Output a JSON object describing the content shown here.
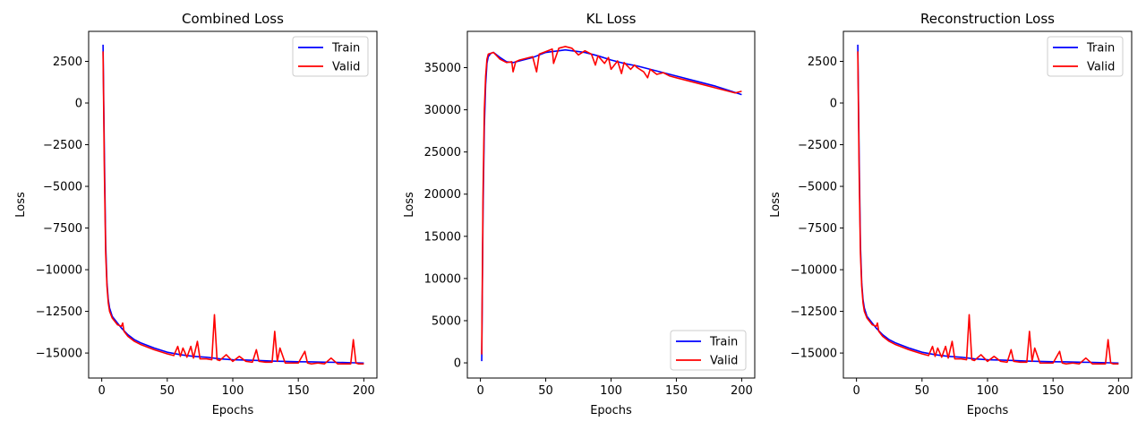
{
  "chart_data": [
    {
      "type": "line",
      "title": "Combined Loss",
      "xlabel": "Epochs",
      "ylabel": "Loss",
      "xlim": [
        -10,
        210
      ],
      "ylim": [
        -16500,
        4300
      ],
      "xticks": [
        0,
        50,
        100,
        150,
        200
      ],
      "xtick_labels": [
        "0",
        "50",
        "100",
        "150",
        "200"
      ],
      "yticks": [
        2500,
        0,
        -2500,
        -5000,
        -7500,
        -10000,
        -12500,
        -15000
      ],
      "ytick_labels": [
        "2500",
        "0",
        "−2500",
        "−5000",
        "−7500",
        "−10000",
        "−12500",
        "−15000"
      ],
      "legend_loc": "upper-right",
      "series": [
        {
          "name": "Train",
          "color": "#0000ff",
          "x": [
            1,
            2,
            3,
            4,
            5,
            6,
            8,
            10,
            12,
            15,
            20,
            25,
            30,
            40,
            50,
            60,
            70,
            80,
            90,
            100,
            110,
            120,
            130,
            140,
            150,
            160,
            170,
            180,
            190,
            200
          ],
          "y": [
            3500,
            -3000,
            -8500,
            -10800,
            -11800,
            -12300,
            -12800,
            -13000,
            -13200,
            -13500,
            -13900,
            -14200,
            -14400,
            -14700,
            -14950,
            -15100,
            -15200,
            -15250,
            -15350,
            -15400,
            -15420,
            -15450,
            -15480,
            -15500,
            -15520,
            -15530,
            -15550,
            -15560,
            -15580,
            -15600
          ]
        },
        {
          "name": "Valid",
          "color": "#ff0000",
          "x": [
            1,
            2,
            3,
            4,
            5,
            6,
            8,
            10,
            12,
            15,
            16,
            17,
            20,
            25,
            30,
            40,
            50,
            55,
            58,
            60,
            62,
            65,
            68,
            70,
            73,
            75,
            80,
            84,
            86,
            88,
            90,
            95,
            100,
            105,
            110,
            115,
            118,
            120,
            125,
            130,
            132,
            134,
            136,
            140,
            145,
            150,
            155,
            157,
            160,
            165,
            170,
            175,
            180,
            185,
            190,
            192,
            194,
            196,
            200
          ],
          "y": [
            3100,
            -4000,
            -9000,
            -11000,
            -12000,
            -12500,
            -12900,
            -13100,
            -13300,
            -13400,
            -13200,
            -13700,
            -14000,
            -14300,
            -14500,
            -14800,
            -15050,
            -15150,
            -14600,
            -15200,
            -14700,
            -15250,
            -14600,
            -15300,
            -14300,
            -15350,
            -15350,
            -15400,
            -12700,
            -15400,
            -15450,
            -15100,
            -15500,
            -15200,
            -15500,
            -15550,
            -14800,
            -15500,
            -15550,
            -15550,
            -13700,
            -15500,
            -14700,
            -15600,
            -15600,
            -15600,
            -14900,
            -15600,
            -15650,
            -15600,
            -15650,
            -15300,
            -15650,
            -15650,
            -15650,
            -14200,
            -15600,
            -15650,
            -15650
          ]
        }
      ]
    },
    {
      "type": "line",
      "title": "KL Loss",
      "xlabel": "Epochs",
      "ylabel": "Loss",
      "xlim": [
        -10,
        210
      ],
      "ylim": [
        -1800,
        39300
      ],
      "xticks": [
        0,
        50,
        100,
        150,
        200
      ],
      "xtick_labels": [
        "0",
        "50",
        "100",
        "150",
        "200"
      ],
      "yticks": [
        0,
        5000,
        10000,
        15000,
        20000,
        25000,
        30000,
        35000
      ],
      "ytick_labels": [
        "0",
        "5000",
        "10000",
        "15000",
        "20000",
        "25000",
        "30000",
        "35000"
      ],
      "legend_loc": "lower-right",
      "series": [
        {
          "name": "Train",
          "color": "#0000ff",
          "x": [
            1,
            2,
            3,
            4,
            5,
            6,
            8,
            10,
            15,
            20,
            25,
            30,
            40,
            50,
            55,
            60,
            65,
            70,
            75,
            80,
            90,
            100,
            110,
            120,
            130,
            140,
            150,
            160,
            170,
            180,
            190,
            200
          ],
          "y": [
            200,
            18000,
            28000,
            33000,
            35500,
            36300,
            36700,
            36800,
            36200,
            35700,
            35600,
            35800,
            36200,
            36800,
            36900,
            37000,
            37100,
            37000,
            36900,
            36800,
            36400,
            35900,
            35500,
            35200,
            34800,
            34400,
            34000,
            33600,
            33200,
            32800,
            32300,
            31800
          ]
        },
        {
          "name": "Valid",
          "color": "#ff0000",
          "x": [
            1,
            2,
            3,
            4,
            5,
            6,
            8,
            10,
            15,
            20,
            24,
            25,
            27,
            30,
            35,
            40,
            43,
            45,
            50,
            55,
            56,
            60,
            65,
            70,
            75,
            80,
            85,
            88,
            90,
            95,
            98,
            100,
            105,
            108,
            110,
            115,
            118,
            120,
            125,
            128,
            130,
            135,
            140,
            145,
            150,
            155,
            160,
            165,
            170,
            175,
            180,
            185,
            190,
            195,
            200
          ],
          "y": [
            1000,
            20000,
            30000,
            34000,
            36000,
            36600,
            36700,
            36800,
            36000,
            35600,
            35700,
            34500,
            35700,
            35900,
            36100,
            36300,
            34500,
            36600,
            36900,
            37200,
            35500,
            37300,
            37500,
            37300,
            36500,
            37000,
            36600,
            35300,
            36400,
            35500,
            36200,
            34800,
            35800,
            34300,
            35600,
            34800,
            35300,
            35000,
            34500,
            33800,
            34800,
            34200,
            34400,
            34000,
            33800,
            33600,
            33400,
            33200,
            33000,
            32800,
            32600,
            32400,
            32200,
            32000,
            32200
          ]
        }
      ]
    },
    {
      "type": "line",
      "title": "Reconstruction Loss",
      "xlabel": "Epochs",
      "ylabel": "Loss",
      "xlim": [
        -10,
        210
      ],
      "ylim": [
        -16500,
        4300
      ],
      "xticks": [
        0,
        50,
        100,
        150,
        200
      ],
      "xtick_labels": [
        "0",
        "50",
        "100",
        "150",
        "200"
      ],
      "yticks": [
        2500,
        0,
        -2500,
        -5000,
        -7500,
        -10000,
        -12500,
        -15000
      ],
      "ytick_labels": [
        "2500",
        "0",
        "−2500",
        "−5000",
        "−7500",
        "−10000",
        "−12500",
        "−15000"
      ],
      "legend_loc": "upper-right",
      "series": [
        {
          "name": "Train",
          "color": "#0000ff",
          "x": [
            1,
            2,
            3,
            4,
            5,
            6,
            8,
            10,
            12,
            15,
            20,
            25,
            30,
            40,
            50,
            60,
            70,
            80,
            90,
            100,
            110,
            120,
            130,
            140,
            150,
            160,
            170,
            180,
            190,
            200
          ],
          "y": [
            3500,
            -3000,
            -8500,
            -10800,
            -11800,
            -12300,
            -12800,
            -13000,
            -13200,
            -13500,
            -13900,
            -14200,
            -14400,
            -14700,
            -14950,
            -15100,
            -15200,
            -15250,
            -15350,
            -15400,
            -15420,
            -15450,
            -15480,
            -15500,
            -15520,
            -15530,
            -15550,
            -15560,
            -15580,
            -15600
          ]
        },
        {
          "name": "Valid",
          "color": "#ff0000",
          "x": [
            1,
            2,
            3,
            4,
            5,
            6,
            8,
            10,
            12,
            15,
            16,
            17,
            20,
            25,
            30,
            40,
            50,
            55,
            58,
            60,
            62,
            65,
            68,
            70,
            73,
            75,
            80,
            84,
            86,
            88,
            90,
            95,
            100,
            105,
            110,
            115,
            118,
            120,
            125,
            130,
            132,
            134,
            136,
            140,
            145,
            150,
            155,
            157,
            160,
            165,
            170,
            175,
            180,
            185,
            190,
            192,
            194,
            196,
            200
          ],
          "y": [
            3100,
            -4000,
            -9000,
            -11000,
            -12000,
            -12500,
            -12900,
            -13100,
            -13300,
            -13400,
            -13200,
            -13700,
            -14000,
            -14300,
            -14500,
            -14800,
            -15050,
            -15150,
            -14600,
            -15200,
            -14700,
            -15250,
            -14600,
            -15300,
            -14300,
            -15350,
            -15350,
            -15400,
            -12700,
            -15400,
            -15450,
            -15100,
            -15500,
            -15200,
            -15500,
            -15550,
            -14800,
            -15500,
            -15550,
            -15550,
            -13700,
            -15500,
            -14700,
            -15600,
            -15600,
            -15600,
            -14900,
            -15600,
            -15650,
            -15600,
            -15650,
            -15300,
            -15650,
            -15650,
            -15650,
            -14200,
            -15600,
            -15650,
            -15650
          ]
        }
      ]
    }
  ]
}
